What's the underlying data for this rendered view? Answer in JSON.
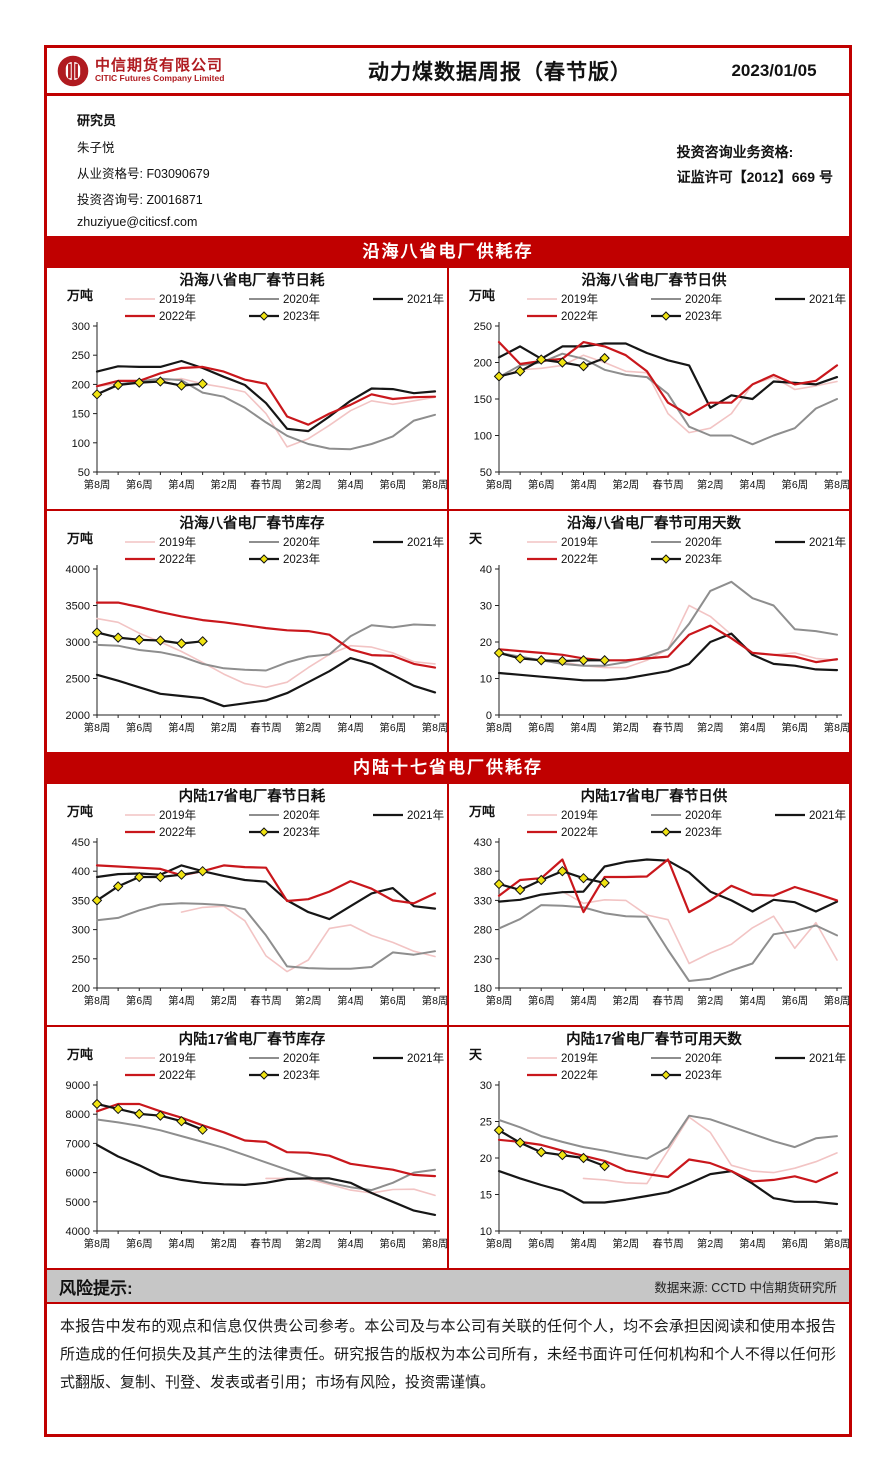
{
  "header": {
    "company_cn": "中信期货有限公司",
    "company_en": "CITIC Futures Company Limited",
    "title": "动力煤数据周报（春节版）",
    "date": "2023/01/05"
  },
  "researcher": {
    "section_label": "研究员",
    "name": "朱子悦",
    "qualification": "从业资格号: F03090679",
    "advisory": "投资咨询号: Z0016871",
    "email": "zhuziyue@citicsf.com",
    "license_line1": "投资咨询业务资格:",
    "license_line2": "证监许可【2012】669 号"
  },
  "sections": [
    {
      "banner": "沿海八省电厂供耗存"
    },
    {
      "banner": "内陆十七省电厂供耗存"
    }
  ],
  "footer": {
    "risk_label": "风险提示:",
    "source": "数据来源: CCTD 中信期货研究所",
    "disclaimer": "本报告中发布的观点和信息仅供贵公司参考。本公司及与本公司有关联的任何个人，均不会承担因阅读和使用本报告所造成的任何损失及其产生的法律责任。研究报告的版权为本公司所有，未经书面许可任何机构和个人不得以任何形式翻版、复制、刊登、发表或者引用；市场有风险，投资需谨慎。"
  },
  "colors": {
    "accent_red": "#C00000",
    "logo_red": "#B01B20",
    "gray_bar": "#C6C6C6",
    "series_2019": "#F2C4C4",
    "series_2020": "#8E8E8E",
    "series_2021": "#161616",
    "series_2022": "#C9171C",
    "series_2023_marker": "#F0E312"
  },
  "chart_data": [
    {
      "type": "line",
      "title": "沿海八省电厂春节日耗",
      "unit": "万吨",
      "ylim": [
        50,
        300
      ],
      "ystep": 50,
      "x_labels": [
        "第8周",
        "第6周",
        "第4周",
        "第2周",
        "春节周",
        "第2周",
        "第4周",
        "第6周",
        "第8周"
      ],
      "series": [
        {
          "name": "2019年",
          "color": "#F2C4C4",
          "width": 1.6,
          "values": [
            197,
            201,
            203,
            206,
            210,
            201,
            195,
            187,
            150,
            93,
            107,
            130,
            155,
            172,
            166,
            172,
            178
          ]
        },
        {
          "name": "2020年",
          "color": "#8E8E8E",
          "width": 2,
          "values": [
            183,
            200,
            205,
            210,
            207,
            186,
            179,
            160,
            135,
            112,
            98,
            90,
            89,
            98,
            111,
            138,
            148
          ]
        },
        {
          "name": "2021年",
          "color": "#161616",
          "width": 2.2,
          "values": [
            222,
            231,
            230,
            230,
            240,
            228,
            213,
            199,
            168,
            124,
            120,
            145,
            172,
            193,
            192,
            185,
            188
          ]
        },
        {
          "name": "2022年",
          "color": "#C9171C",
          "width": 2.2,
          "values": [
            197,
            206,
            206,
            219,
            228,
            230,
            222,
            208,
            201,
            145,
            131,
            150,
            165,
            183,
            175,
            178,
            179
          ]
        },
        {
          "name": "2023年",
          "color": "#161616",
          "width": 2.2,
          "marker": "diamond",
          "marker_color": "#F0E312",
          "values": [
            183,
            199,
            203,
            205,
            198,
            201
          ]
        }
      ]
    },
    {
      "type": "line",
      "title": "沿海八省电厂春节日供",
      "unit": "万吨",
      "ylim": [
        50,
        250
      ],
      "ystep": 50,
      "x_labels": [
        "第8周",
        "第6周",
        "第4周",
        "第2周",
        "春节周",
        "第2周",
        "第4周",
        "第6周",
        "第8周"
      ],
      "series": [
        {
          "name": "2019年",
          "color": "#F2C4C4",
          "width": 1.6,
          "values": [
            180,
            190,
            192,
            196,
            210,
            200,
            188,
            186,
            130,
            104,
            110,
            130,
            170,
            180,
            163,
            168,
            174
          ]
        },
        {
          "name": "2020年",
          "color": "#8E8E8E",
          "width": 2,
          "values": [
            180,
            196,
            200,
            212,
            205,
            190,
            183,
            180,
            157,
            112,
            100,
            100,
            88,
            100,
            110,
            137,
            150
          ]
        },
        {
          "name": "2021年",
          "color": "#161616",
          "width": 2.2,
          "values": [
            207,
            222,
            205,
            222,
            222,
            226,
            226,
            213,
            203,
            196,
            138,
            155,
            150,
            174,
            172,
            170,
            180
          ]
        },
        {
          "name": "2022年",
          "color": "#C9171C",
          "width": 2.2,
          "values": [
            228,
            198,
            202,
            205,
            228,
            222,
            210,
            188,
            145,
            128,
            145,
            145,
            170,
            183,
            170,
            175,
            196
          ]
        },
        {
          "name": "2023年",
          "color": "#161616",
          "width": 2.2,
          "marker": "diamond",
          "marker_color": "#F0E312",
          "values": [
            181,
            188,
            204,
            200,
            195,
            206
          ]
        }
      ]
    },
    {
      "type": "line",
      "title": "沿海八省电厂春节库存",
      "unit": "万吨",
      "ylim": [
        2000,
        4000
      ],
      "ystep": 500,
      "x_labels": [
        "第8周",
        "第6周",
        "第4周",
        "第2周",
        "春节周",
        "第2周",
        "第4周",
        "第6周",
        "第8周"
      ],
      "series": [
        {
          "name": "2019年",
          "color": "#F2C4C4",
          "width": 1.6,
          "values": [
            3320,
            3270,
            3120,
            3000,
            2870,
            2720,
            2560,
            2430,
            2380,
            2450,
            2650,
            2830,
            2950,
            2930,
            2850,
            2730,
            2700
          ]
        },
        {
          "name": "2020年",
          "color": "#8E8E8E",
          "width": 2,
          "values": [
            2960,
            2950,
            2890,
            2860,
            2800,
            2700,
            2640,
            2620,
            2610,
            2720,
            2800,
            2830,
            3080,
            3230,
            3200,
            3240,
            3230
          ]
        },
        {
          "name": "2021年",
          "color": "#161616",
          "width": 2.2,
          "values": [
            2550,
            2470,
            2380,
            2290,
            2260,
            2230,
            2120,
            2160,
            2200,
            2300,
            2450,
            2600,
            2780,
            2700,
            2550,
            2400,
            2310
          ]
        },
        {
          "name": "2022年",
          "color": "#C9171C",
          "width": 2.2,
          "values": [
            3540,
            3540,
            3480,
            3410,
            3350,
            3300,
            3270,
            3230,
            3190,
            3160,
            3150,
            3100,
            2900,
            2820,
            2810,
            2700,
            2650
          ]
        },
        {
          "name": "2023年",
          "color": "#161616",
          "width": 2.2,
          "marker": "diamond",
          "marker_color": "#F0E312",
          "values": [
            3130,
            3060,
            3030,
            3020,
            2980,
            3010
          ]
        }
      ]
    },
    {
      "type": "line",
      "title": "沿海八省电厂春节可用天数",
      "unit": "天",
      "ylim": [
        0,
        40
      ],
      "ystep": 10,
      "x_labels": [
        "第8周",
        "第6周",
        "第4周",
        "第2周",
        "春节周",
        "第2周",
        "第4周",
        "第6周",
        "第8周"
      ],
      "series": [
        {
          "name": "2019年",
          "color": "#F2C4C4",
          "width": 1.6,
          "values": [
            17,
            16,
            15,
            14.5,
            13.5,
            13,
            13,
            15,
            18,
            30,
            27,
            22,
            17,
            16.5,
            17,
            15.5,
            15
          ]
        },
        {
          "name": "2020年",
          "color": "#8E8E8E",
          "width": 2,
          "values": [
            17,
            16,
            15,
            14,
            13.5,
            13.5,
            14.5,
            16,
            18,
            25,
            34,
            36.5,
            32,
            30,
            23.5,
            23,
            22
          ]
        },
        {
          "name": "2021年",
          "color": "#161616",
          "width": 2.2,
          "values": [
            11.5,
            11,
            10.5,
            10,
            9.5,
            9.5,
            10,
            11,
            12,
            14,
            20,
            22.3,
            16.5,
            14,
            13.5,
            12.5,
            12.3
          ]
        },
        {
          "name": "2022年",
          "color": "#C9171C",
          "width": 2.2,
          "values": [
            18,
            17.5,
            17,
            16.5,
            15.5,
            15,
            15,
            15.5,
            16,
            22,
            24.5,
            21,
            17,
            16.5,
            16,
            14.5,
            15.3
          ]
        },
        {
          "name": "2023年",
          "color": "#161616",
          "width": 2.2,
          "marker": "diamond",
          "marker_color": "#F0E312",
          "values": [
            17,
            15.5,
            15,
            14.8,
            15,
            15
          ]
        }
      ]
    },
    {
      "type": "line",
      "title": "内陆17省电厂春节日耗",
      "unit": "万吨",
      "ylim": [
        200,
        450
      ],
      "ystep": 50,
      "x_labels": [
        "第8周",
        "第6周",
        "第4周",
        "第2周",
        "春节周",
        "第2周",
        "第4周",
        "第6周",
        "第8周"
      ],
      "series": [
        {
          "name": "2019年",
          "color": "#F2C4C4",
          "width": 1.6,
          "values": [
            null,
            null,
            null,
            null,
            330,
            338,
            340,
            315,
            255,
            228,
            248,
            302,
            308,
            290,
            278,
            263,
            254
          ]
        },
        {
          "name": "2020年",
          "color": "#8E8E8E",
          "width": 2,
          "values": [
            316,
            320,
            333,
            343,
            345,
            344,
            342,
            335,
            290,
            237,
            234,
            233,
            233,
            236,
            261,
            257,
            263
          ]
        },
        {
          "name": "2021年",
          "color": "#161616",
          "width": 2.2,
          "values": [
            390,
            395,
            396,
            394,
            410,
            400,
            392,
            385,
            382,
            350,
            330,
            318,
            340,
            362,
            371,
            340,
            336
          ]
        },
        {
          "name": "2022年",
          "color": "#C9171C",
          "width": 2.2,
          "values": [
            410,
            408,
            406,
            404,
            393,
            400,
            410,
            407,
            406,
            349,
            352,
            365,
            383,
            370,
            350,
            345,
            362
          ]
        },
        {
          "name": "2023年",
          "color": "#161616",
          "width": 2.2,
          "marker": "diamond",
          "marker_color": "#F0E312",
          "values": [
            350,
            374,
            390,
            390,
            394,
            400
          ]
        }
      ]
    },
    {
      "type": "line",
      "title": "内陆17省电厂春节日供",
      "unit": "万吨",
      "ylim": [
        180,
        430
      ],
      "ystep": 50,
      "x_labels": [
        "第8周",
        "第6周",
        "第4周",
        "第2周",
        "春节周",
        "第2周",
        "第4周",
        "第6周",
        "第8周"
      ],
      "series": [
        {
          "name": "2019年",
          "color": "#F2C4C4",
          "width": 1.6,
          "values": [
            null,
            null,
            null,
            345,
            325,
            331,
            330,
            305,
            297,
            222,
            240,
            255,
            283,
            303,
            248,
            292,
            228
          ]
        },
        {
          "name": "2020年",
          "color": "#8E8E8E",
          "width": 2,
          "values": [
            282,
            298,
            322,
            321,
            318,
            308,
            303,
            302,
            245,
            192,
            196,
            210,
            222,
            272,
            278,
            287,
            270
          ]
        },
        {
          "name": "2021年",
          "color": "#161616",
          "width": 2.2,
          "values": [
            328,
            331,
            340,
            344,
            345,
            388,
            396,
            400,
            398,
            378,
            345,
            330,
            311,
            331,
            327,
            311,
            328
          ]
        },
        {
          "name": "2022年",
          "color": "#C9171C",
          "width": 2.2,
          "values": [
            338,
            365,
            368,
            400,
            310,
            370,
            370,
            371,
            400,
            310,
            330,
            355,
            340,
            338,
            353,
            342,
            330
          ]
        },
        {
          "name": "2023年",
          "color": "#161616",
          "width": 2.2,
          "marker": "diamond",
          "marker_color": "#F0E312",
          "values": [
            358,
            348,
            365,
            380,
            368,
            360
          ]
        }
      ]
    },
    {
      "type": "line",
      "title": "内陆17省电厂春节库存",
      "unit": "万吨",
      "ylim": [
        4000,
        9000
      ],
      "ystep": 1000,
      "x_labels": [
        "第8周",
        "第6周",
        "第4周",
        "第2周",
        "春节周",
        "第2周",
        "第4周",
        "第6周",
        "第8周"
      ],
      "series": [
        {
          "name": "2019年",
          "color": "#F2C4C4",
          "width": 1.6,
          "values": [
            null,
            null,
            null,
            null,
            null,
            null,
            null,
            null,
            5800,
            5800,
            5780,
            5600,
            5400,
            5300,
            5420,
            5430,
            5220
          ]
        },
        {
          "name": "2020年",
          "color": "#8E8E8E",
          "width": 2,
          "values": [
            7820,
            7720,
            7600,
            7450,
            7250,
            7050,
            6850,
            6600,
            6350,
            6100,
            5850,
            5650,
            5500,
            5400,
            5650,
            6000,
            6100
          ]
        },
        {
          "name": "2021年",
          "color": "#161616",
          "width": 2.2,
          "values": [
            6950,
            6550,
            6250,
            5900,
            5750,
            5650,
            5600,
            5580,
            5650,
            5780,
            5800,
            5800,
            5650,
            5300,
            5000,
            4700,
            4550
          ]
        },
        {
          "name": "2022年",
          "color": "#C9171C",
          "width": 2.2,
          "values": [
            8100,
            8350,
            8350,
            8100,
            7880,
            7620,
            7380,
            7100,
            7050,
            6700,
            6680,
            6580,
            6300,
            6200,
            6100,
            5920,
            5880
          ]
        },
        {
          "name": "2023年",
          "color": "#161616",
          "width": 2.2,
          "marker": "diamond",
          "marker_color": "#F0E312",
          "values": [
            8350,
            8180,
            8010,
            7950,
            7760,
            7470
          ]
        }
      ]
    },
    {
      "type": "line",
      "title": "内陆17省电厂春节可用天数",
      "unit": "天",
      "ylim": [
        10,
        30
      ],
      "ystep": 5,
      "x_labels": [
        "第8周",
        "第6周",
        "第4周",
        "第2周",
        "春节周",
        "第2周",
        "第4周",
        "第6周",
        "第8周"
      ],
      "series": [
        {
          "name": "2019年",
          "color": "#F2C4C4",
          "width": 1.6,
          "values": [
            null,
            null,
            null,
            null,
            17.2,
            17,
            16.6,
            16.5,
            21,
            25.6,
            23.5,
            19,
            18.2,
            18,
            18.6,
            19.5,
            20.7
          ]
        },
        {
          "name": "2020年",
          "color": "#8E8E8E",
          "width": 2,
          "values": [
            25.2,
            24.2,
            23,
            22.2,
            21.5,
            21,
            20.4,
            19.9,
            21.5,
            25.8,
            25.3,
            24.3,
            23.3,
            22.3,
            21.5,
            22.7,
            23
          ]
        },
        {
          "name": "2021年",
          "color": "#161616",
          "width": 2.2,
          "values": [
            18.2,
            17.2,
            16.3,
            15.5,
            13.9,
            13.9,
            14.3,
            14.8,
            15.3,
            16.5,
            17.8,
            18.2,
            16.5,
            14.5,
            14,
            14,
            13.7
          ]
        },
        {
          "name": "2022年",
          "color": "#C9171C",
          "width": 2.2,
          "values": [
            22.5,
            22.2,
            21.8,
            21,
            20.3,
            19.6,
            18.3,
            17.8,
            17.4,
            19.8,
            19.3,
            18.2,
            16.8,
            17,
            17.5,
            16.7,
            18
          ]
        },
        {
          "name": "2023年",
          "color": "#161616",
          "width": 2.2,
          "marker": "diamond",
          "marker_color": "#F0E312",
          "values": [
            23.8,
            22.1,
            20.8,
            20.4,
            20,
            18.9
          ]
        }
      ]
    }
  ]
}
